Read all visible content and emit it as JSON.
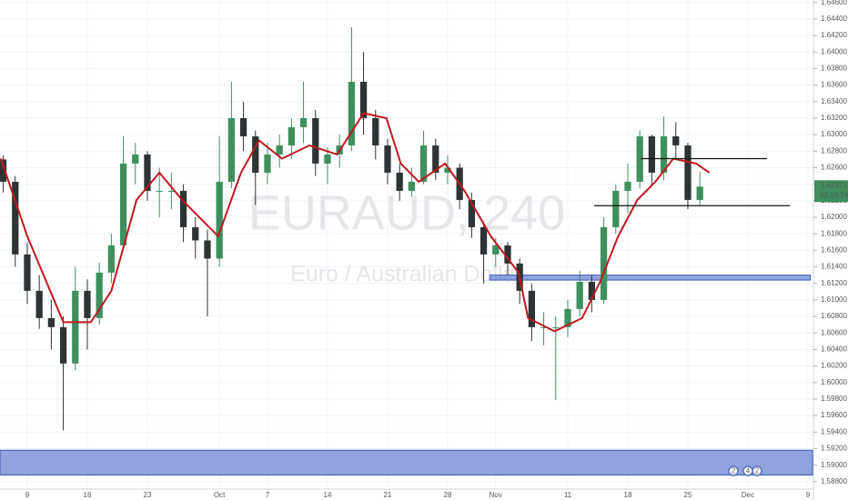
{
  "chart_data": {
    "type": "candlestick",
    "title": "EURAUD, 240",
    "subtitle": "Euro / Australian Dollar",
    "up_color": "#3f8f5f",
    "down_color": "#2e3436",
    "x": [
      -2,
      -1,
      0,
      1,
      2,
      3,
      4,
      5,
      6,
      7,
      8,
      9,
      10,
      11,
      12,
      13,
      14,
      15,
      16,
      17,
      18,
      19,
      20,
      21,
      22,
      23,
      24,
      25,
      26,
      27,
      28,
      29,
      30,
      31,
      32,
      33,
      34,
      35,
      36,
      37,
      38,
      39,
      40,
      41,
      42,
      43,
      44,
      45,
      46,
      47,
      48,
      49,
      50,
      51,
      52,
      53,
      54,
      55,
      56
    ],
    "open": [
      1.627,
      1.6243,
      1.6155,
      1.6111,
      1.6078,
      1.6067,
      1.6023,
      1.6111,
      1.6078,
      1.6133,
      1.6166,
      1.6265,
      1.6276,
      1.6232,
      1.6232,
      1.6232,
      1.6188,
      1.6172,
      1.615,
      1.6243,
      1.632,
      1.6298,
      1.6254,
      1.6276,
      1.6287,
      1.6309,
      1.632,
      1.6265,
      1.6276,
      1.6287,
      1.6364,
      1.632,
      1.6287,
      1.6254,
      1.6232,
      1.6243,
      1.6287,
      1.6254,
      1.626,
      1.6221,
      1.6188,
      1.6155,
      1.6166,
      1.6144,
      1.6111,
      1.6067,
      1.6067,
      1.6067,
      1.6089,
      1.6122,
      1.61,
      1.6188,
      1.6232,
      1.6243,
      1.6298,
      1.6254,
      1.6298,
      1.6287,
      1.6221
    ],
    "high": [
      1.6275,
      1.625,
      1.617,
      1.613,
      1.61,
      1.608,
      1.614,
      1.6125,
      1.6145,
      1.618,
      1.6298,
      1.629,
      1.628,
      1.626,
      1.6254,
      1.624,
      1.62,
      1.6185,
      1.6298,
      1.6364,
      1.634,
      1.6305,
      1.629,
      1.63,
      1.632,
      1.6364,
      1.633,
      1.6285,
      1.63,
      1.643,
      1.64,
      1.633,
      1.6295,
      1.6265,
      1.626,
      1.6305,
      1.6295,
      1.6275,
      1.6265,
      1.623,
      1.6195,
      1.6175,
      1.617,
      1.615,
      1.612,
      1.6085,
      1.608,
      1.61,
      1.6135,
      1.613,
      1.62,
      1.624,
      1.6265,
      1.6305,
      1.63,
      1.6322,
      1.6315,
      1.629,
      1.6255
    ],
    "low": [
      1.623,
      1.614,
      1.6095,
      1.6065,
      1.604,
      1.5942,
      1.6015,
      1.604,
      1.607,
      1.612,
      1.616,
      1.624,
      1.622,
      1.62,
      1.621,
      1.617,
      1.615,
      1.608,
      1.614,
      1.6235,
      1.628,
      1.6215,
      1.624,
      1.626,
      1.627,
      1.629,
      1.625,
      1.624,
      1.626,
      1.628,
      1.63,
      1.627,
      1.624,
      1.622,
      1.6225,
      1.624,
      1.6245,
      1.624,
      1.621,
      1.6175,
      1.612,
      1.614,
      1.613,
      1.6095,
      1.605,
      1.6045,
      1.5979,
      1.6055,
      1.608,
      1.6085,
      1.6095,
      1.618,
      1.6205,
      1.6235,
      1.624,
      1.6245,
      1.627,
      1.621,
      1.6215
    ],
    "close": [
      1.6243,
      1.6155,
      1.6111,
      1.6078,
      1.6067,
      1.6023,
      1.6111,
      1.6078,
      1.6133,
      1.6166,
      1.6265,
      1.6276,
      1.6232,
      1.6232,
      1.6232,
      1.6188,
      1.6172,
      1.615,
      1.6243,
      1.632,
      1.6298,
      1.6254,
      1.6276,
      1.6287,
      1.6309,
      1.632,
      1.6265,
      1.6276,
      1.6287,
      1.6364,
      1.632,
      1.6287,
      1.6254,
      1.6232,
      1.6243,
      1.6287,
      1.6254,
      1.626,
      1.6221,
      1.6188,
      1.6155,
      1.6166,
      1.6144,
      1.6111,
      1.6067,
      1.6067,
      1.6067,
      1.6089,
      1.6122,
      1.61,
      1.6188,
      1.6232,
      1.6243,
      1.6298,
      1.6254,
      1.6298,
      1.6287,
      1.6221,
      1.62371
    ],
    "ma": {
      "color": "#c0181e",
      "x": [
        -2.2,
        0,
        3,
        5.3,
        7,
        9.1,
        11,
        12.9,
        15.9,
        17.8,
        19.3,
        21.2,
        23.5,
        25.8,
        28,
        29.9,
        31.1,
        32.6,
        34.8,
        36.4,
        38.6,
        40.9,
        41.7,
        43.9,
        46.2,
        47.7,
        49.2,
        50.8,
        52.3,
        53.8,
        55.7,
        56.8
      ],
      "values": [
        1.6271,
        1.6177,
        1.6073,
        1.6073,
        1.6111,
        1.6221,
        1.6254,
        1.6221,
        1.6177,
        1.6254,
        1.6293,
        1.6271,
        1.6287,
        1.6276,
        1.6326,
        1.632,
        1.6265,
        1.6243,
        1.6265,
        1.6232,
        1.6177,
        1.6133,
        1.6078,
        1.6062,
        1.6078,
        1.6122,
        1.6177,
        1.6221,
        1.6243,
        1.6271,
        1.6265,
        1.6254
      ]
    },
    "lines": [
      {
        "value": 1.6271,
        "x": [
          51.1,
          61.6
        ],
        "color": "#111111"
      },
      {
        "value": 1.6214,
        "x": [
          47.2,
          63.5
        ],
        "color": "#111111"
      }
    ],
    "zones": [
      {
        "range": [
          1.6124,
          1.613
        ],
        "x": [
          38.5,
          65.2
        ],
        "color": "#7b93d6"
      },
      {
        "range": [
          1.5888,
          1.5918
        ],
        "x": [
          -2.27,
          65.38
        ],
        "color": "#7b93d6"
      }
    ],
    "last_price": {
      "value": 1.62371,
      "label": "1.62371"
    },
    "countdown": "03:18:24",
    "events": [
      "2",
      "4",
      "2"
    ],
    "xlim": [
      -2.27,
      65.38
    ],
    "ylim": [
      1.5871,
      1.6463
    ],
    "xticks": [
      {
        "value": 0,
        "label": "9"
      },
      {
        "value": 5,
        "label": "16"
      },
      {
        "value": 10,
        "label": "23"
      },
      {
        "value": 16,
        "label": "Oct"
      },
      {
        "value": 20,
        "label": "7"
      },
      {
        "value": 25,
        "label": "14"
      },
      {
        "value": 30,
        "label": "21"
      },
      {
        "value": 35,
        "label": "28"
      },
      {
        "value": 39,
        "label": "Nov"
      },
      {
        "value": 45,
        "label": "11"
      },
      {
        "value": 50,
        "label": "18"
      },
      {
        "value": 55,
        "label": "25"
      },
      {
        "value": 60,
        "label": "Dec"
      },
      {
        "value": 65,
        "label": "9"
      }
    ],
    "yticks": [
      {
        "value": 1.588,
        "label": "1.58800"
      },
      {
        "value": 1.59,
        "label": "1.59000"
      },
      {
        "value": 1.592,
        "label": "1.59200"
      },
      {
        "value": 1.594,
        "label": "1.59400"
      },
      {
        "value": 1.596,
        "label": "1.59600"
      },
      {
        "value": 1.598,
        "label": "1.59800"
      },
      {
        "value": 1.6,
        "label": "1.60000"
      },
      {
        "value": 1.602,
        "label": "1.60200"
      },
      {
        "value": 1.604,
        "label": "1.60400"
      },
      {
        "value": 1.606,
        "label": "1.60600"
      },
      {
        "value": 1.608,
        "label": "1.60800"
      },
      {
        "value": 1.61,
        "label": "1.61000"
      },
      {
        "value": 1.612,
        "label": "1.61200"
      },
      {
        "value": 1.614,
        "label": "1.61400"
      },
      {
        "value": 1.616,
        "label": "1.61600"
      },
      {
        "value": 1.618,
        "label": "1.61800"
      },
      {
        "value": 1.62,
        "label": "1.62000"
      },
      {
        "value": 1.622,
        "label": "1.62200"
      },
      {
        "value": 1.624,
        "label": "1.62400"
      },
      {
        "value": 1.626,
        "label": "1.62600"
      },
      {
        "value": 1.628,
        "label": "1.62800"
      },
      {
        "value": 1.63,
        "label": "1.63000"
      },
      {
        "value": 1.632,
        "label": "1.63200"
      },
      {
        "value": 1.634,
        "label": "1.63400"
      },
      {
        "value": 1.636,
        "label": "1.63600"
      },
      {
        "value": 1.638,
        "label": "1.63800"
      },
      {
        "value": 1.64,
        "label": "1.64000"
      },
      {
        "value": 1.642,
        "label": "1.64200"
      },
      {
        "value": 1.644,
        "label": "1.64400"
      },
      {
        "value": 1.646,
        "label": "1.64600"
      }
    ],
    "grid": true
  }
}
